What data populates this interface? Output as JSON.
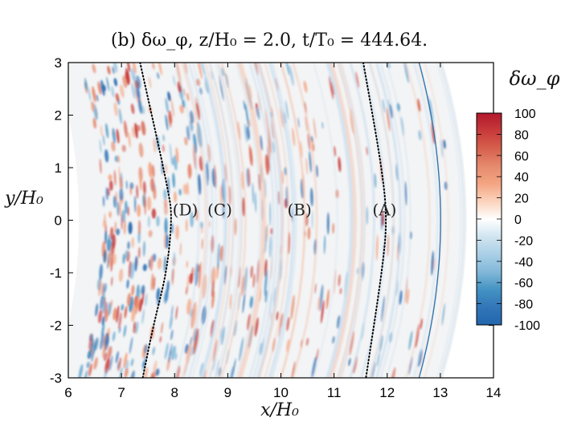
{
  "chart_data": {
    "type": "heatmap",
    "title": "(b) δω_φ, z/H₀ = 2.0, t/T₀ = 444.64.",
    "xlabel": "x/H₀",
    "ylabel": "y/H₀",
    "xlim": [
      6,
      14
    ],
    "ylim": [
      -3,
      3
    ],
    "xticks": [
      "6",
      "7",
      "8",
      "9",
      "10",
      "11",
      "12",
      "13",
      "14"
    ],
    "yticks": [
      "-3",
      "-2",
      "-1",
      "0",
      "1",
      "2",
      "3"
    ],
    "colorbar": {
      "title": "δω_φ",
      "range": [
        -100,
        100
      ],
      "ticks": [
        "100",
        "80",
        "60",
        "40",
        "20",
        "0",
        "-20",
        "-40",
        "-60",
        "-80",
        "-100"
      ],
      "colors": [
        "#b2182b",
        "#c73a3a",
        "#d6604d",
        "#e58a6d",
        "#f4a582",
        "#fbd3bd",
        "#ffffff",
        "#d1e5f0",
        "#a9cfe6",
        "#82b8d9",
        "#4393c3",
        "#3276b8",
        "#2166ac"
      ]
    },
    "annotations": [
      {
        "label": "(D)",
        "x": 8.2,
        "y": 0.2
      },
      {
        "label": "(C)",
        "x": 8.85,
        "y": 0.2
      },
      {
        "label": "(B)",
        "x": 10.35,
        "y": 0.2
      },
      {
        "label": "(A)",
        "x": 11.95,
        "y": 0.2
      }
    ],
    "dotted_curves": [
      {
        "name": "inner-boundary",
        "points": [
          [
            7.35,
            3.0
          ],
          [
            7.9,
            0.5
          ],
          [
            7.95,
            0.0
          ],
          [
            7.85,
            -1.0
          ],
          [
            7.6,
            -2.0
          ],
          [
            7.4,
            -3.0
          ]
        ]
      },
      {
        "name": "outer-boundary",
        "points": [
          [
            11.55,
            3.0
          ],
          [
            11.9,
            1.0
          ],
          [
            12.0,
            0.0
          ],
          [
            11.9,
            -1.0
          ],
          [
            11.6,
            -3.0
          ]
        ]
      }
    ],
    "outer_edge_line": {
      "points": [
        [
          12.6,
          3.0
        ],
        [
          13.0,
          0.0
        ],
        [
          12.6,
          -3.0
        ]
      ],
      "color": "#2f78b4"
    }
  }
}
